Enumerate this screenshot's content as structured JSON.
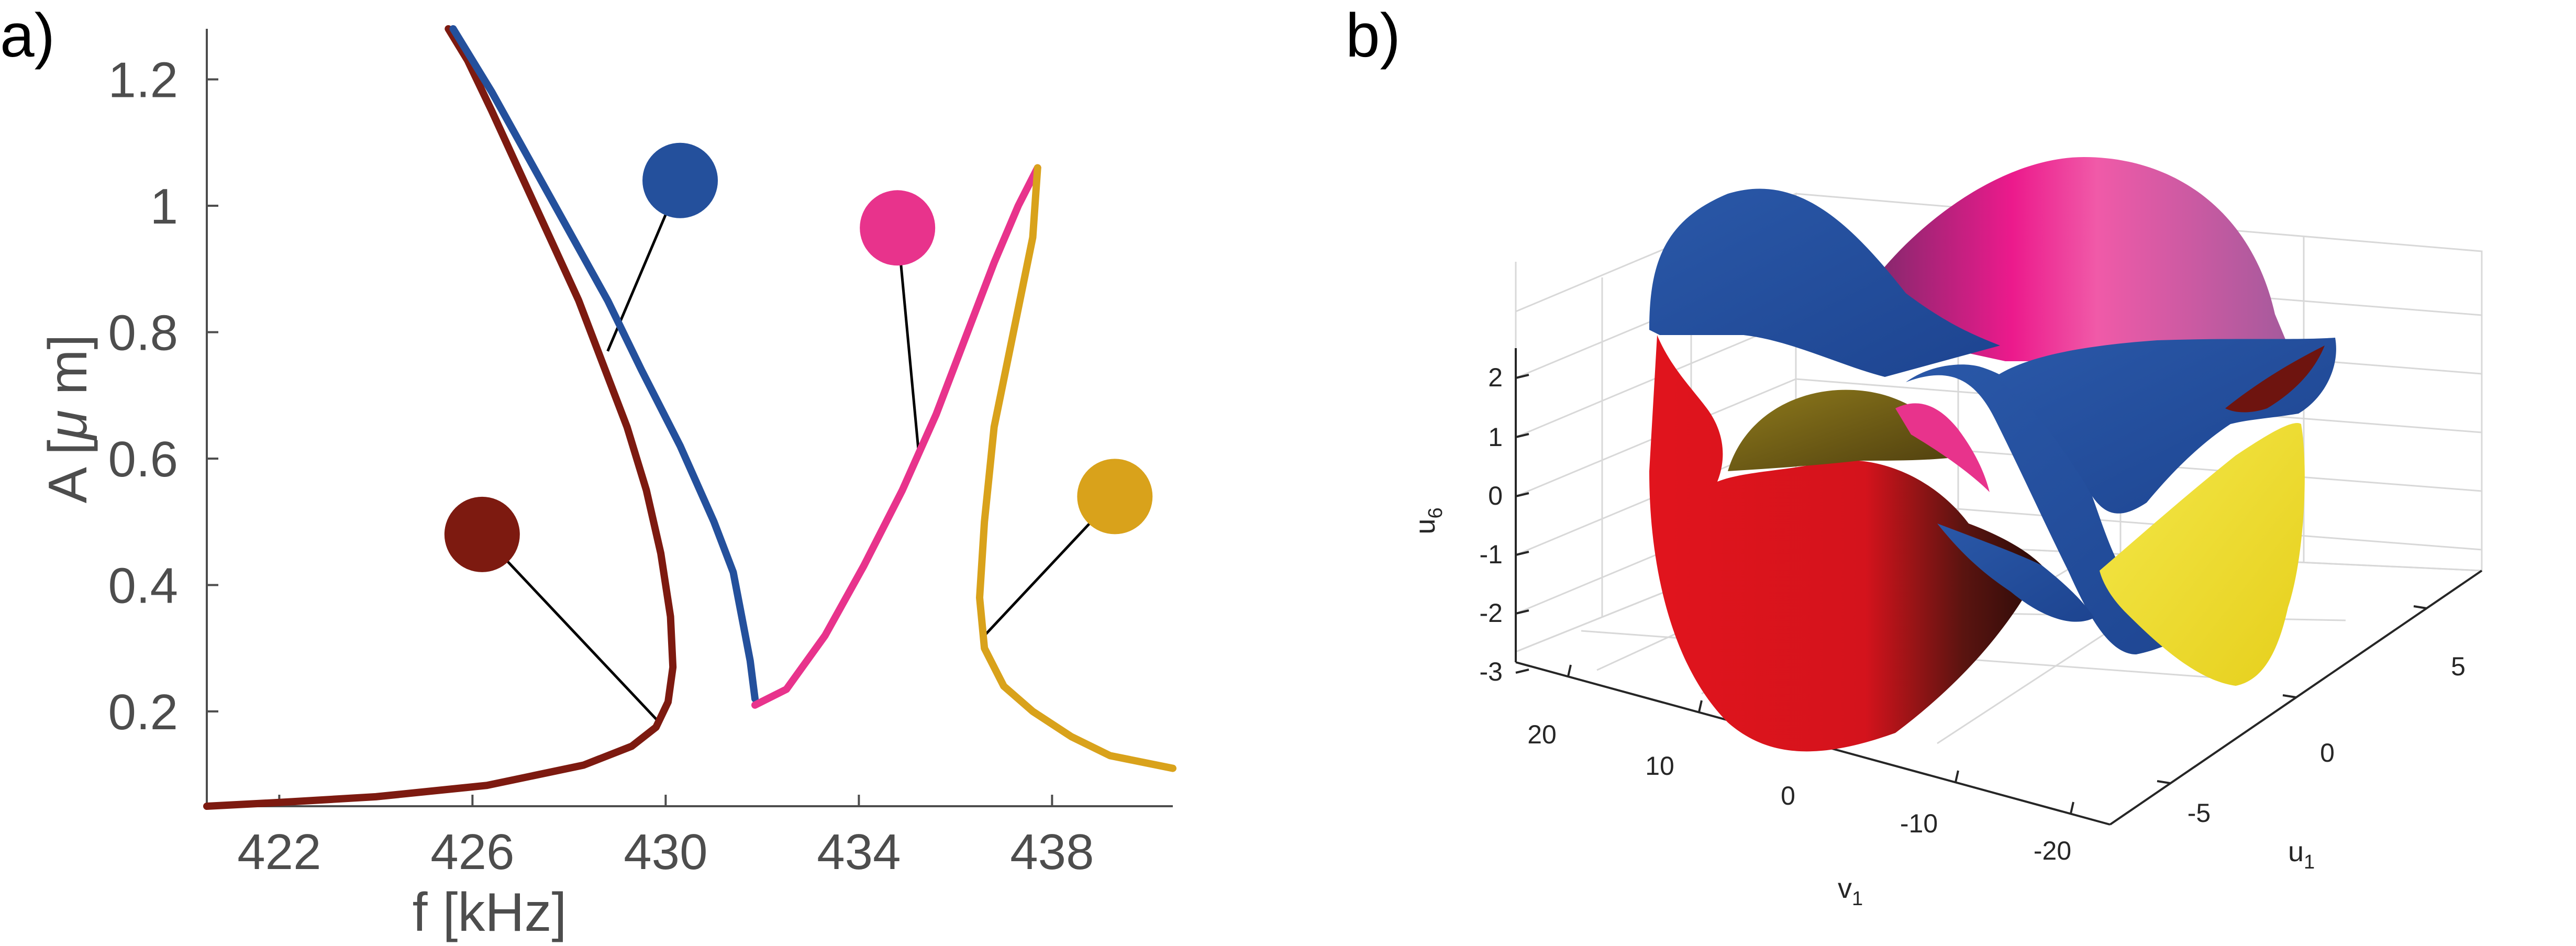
{
  "panels": {
    "a": {
      "label": "a)",
      "chart_data": {
        "type": "line",
        "title": "",
        "xlabel": "f [kHz]",
        "ylabel": "A [",
        "ylabel_mu": "μ",
        "ylabel_unit": " m]",
        "xlim": [
          420.5,
          440.5
        ],
        "ylim": [
          0.05,
          1.28
        ],
        "xticks": [
          422,
          426,
          430,
          434,
          438
        ],
        "yticks": [
          0.2,
          0.4,
          0.6,
          0.8,
          1.0,
          1.2
        ],
        "ytick_labels": [
          "0.2",
          "0.4",
          "0.6",
          "0.8",
          "1",
          "1.2"
        ],
        "series": [
          {
            "name": "branch-dark-red",
            "color": "#7d1a10",
            "points": [
              [
                420.5,
                0.05
              ],
              [
                422,
                0.056
              ],
              [
                424,
                0.065
              ],
              [
                426.3,
                0.083
              ],
              [
                428.3,
                0.115
              ],
              [
                429.3,
                0.145
              ],
              [
                429.8,
                0.175
              ],
              [
                430.05,
                0.215
              ],
              [
                430.15,
                0.27
              ],
              [
                430.1,
                0.35
              ],
              [
                429.9,
                0.45
              ],
              [
                429.6,
                0.55
              ],
              [
                429.2,
                0.65
              ],
              [
                428.7,
                0.75
              ],
              [
                428.2,
                0.85
              ],
              [
                427.6,
                0.95
              ],
              [
                427.0,
                1.05
              ],
              [
                426.4,
                1.15
              ],
              [
                425.9,
                1.23
              ],
              [
                425.5,
                1.28
              ]
            ]
          },
          {
            "name": "branch-blue",
            "color": "#24509c",
            "points": [
              [
                425.6,
                1.28
              ],
              [
                426.4,
                1.18
              ],
              [
                427.2,
                1.07
              ],
              [
                428.0,
                0.96
              ],
              [
                428.8,
                0.85
              ],
              [
                429.5,
                0.74
              ],
              [
                430.3,
                0.62
              ],
              [
                431.0,
                0.5
              ],
              [
                431.4,
                0.42
              ],
              [
                431.6,
                0.34
              ],
              [
                431.75,
                0.28
              ],
              [
                431.85,
                0.22
              ]
            ]
          },
          {
            "name": "branch-pink",
            "color": "#e8338c",
            "points": [
              [
                431.85,
                0.21
              ],
              [
                432.5,
                0.235
              ],
              [
                433.3,
                0.32
              ],
              [
                434.1,
                0.43
              ],
              [
                434.9,
                0.55
              ],
              [
                435.6,
                0.67
              ],
              [
                436.2,
                0.79
              ],
              [
                436.8,
                0.91
              ],
              [
                437.3,
                1.0
              ],
              [
                437.7,
                1.06
              ]
            ]
          },
          {
            "name": "branch-gold",
            "color": "#d9a21b",
            "points": [
              [
                437.7,
                1.06
              ],
              [
                437.6,
                0.95
              ],
              [
                437.2,
                0.8
              ],
              [
                436.8,
                0.65
              ],
              [
                436.6,
                0.5
              ],
              [
                436.5,
                0.38
              ],
              [
                436.6,
                0.3
              ],
              [
                437.0,
                0.24
              ],
              [
                437.6,
                0.2
              ],
              [
                438.4,
                0.16
              ],
              [
                439.2,
                0.13
              ],
              [
                440.5,
                0.11
              ]
            ]
          }
        ],
        "markers": [
          {
            "name": "marker-blue",
            "color": "#24509c",
            "x": 430.3,
            "y": 1.04,
            "line_to": [
              428.8,
              0.77
            ]
          },
          {
            "name": "marker-pink",
            "color": "#e8338c",
            "x": 434.8,
            "y": 0.965,
            "line_to": [
              435.25,
              0.6
            ]
          },
          {
            "name": "marker-gold",
            "color": "#d9a21b",
            "x": 439.3,
            "y": 0.54,
            "line_to": [
              436.6,
              0.32
            ]
          },
          {
            "name": "marker-dark-red",
            "color": "#7d1a10",
            "x": 426.2,
            "y": 0.48,
            "line_to": [
              429.9,
              0.18
            ]
          }
        ]
      }
    },
    "b": {
      "label": "b)",
      "chart_data": {
        "type": "surface3d",
        "title": "",
        "xlabel": "v",
        "xlabel_sub": "1",
        "ylabel": "u",
        "ylabel_sub": "1",
        "zlabel": "u",
        "zlabel_sub": "6",
        "v1_ticks": [
          "20",
          "10",
          "0",
          "-10",
          "-20"
        ],
        "u1_ticks": [
          "5",
          "0",
          "-5"
        ],
        "u6_ticks": [
          "2",
          "1",
          "0",
          "-1",
          "-2",
          "-3"
        ],
        "surface_colors": [
          "#e1141d",
          "#24509c",
          "#e8338c",
          "#f2e22e",
          "#6e5a14"
        ]
      }
    }
  }
}
